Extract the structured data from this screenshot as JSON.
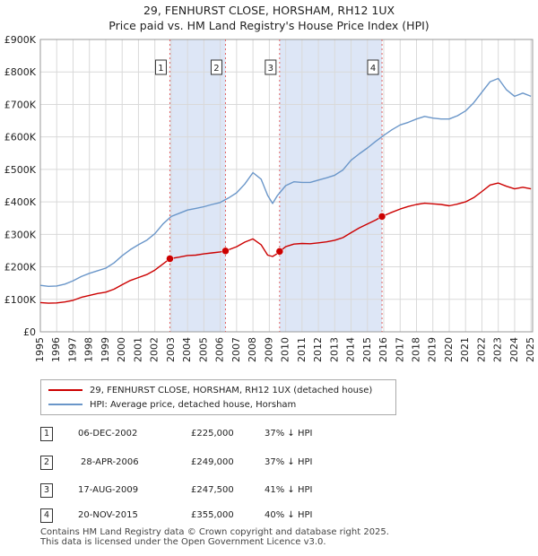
{
  "title_line1": "29, FENHURST CLOSE, HORSHAM, RH12 1UX",
  "title_line2": "Price paid vs. HM Land Registry's House Price Index (HPI)",
  "colors": {
    "property": "#cc0000",
    "hpi": "#6a96c9",
    "band": "#dde6f6",
    "vline": "#e06060"
  },
  "chart_data": {
    "type": "line",
    "title": "29, FENHURST CLOSE, HORSHAM, RH12 1UX — Price paid vs. HM Land Registry's House Price Index (HPI)",
    "xlabel": "",
    "ylabel": "",
    "xlim": [
      1995,
      2025.1
    ],
    "ylim": [
      0,
      900000
    ],
    "y_ticks": [
      0,
      100000,
      200000,
      300000,
      400000,
      500000,
      600000,
      700000,
      800000,
      900000
    ],
    "y_tick_labels": [
      "£0",
      "£100K",
      "£200K",
      "£300K",
      "£400K",
      "£500K",
      "£600K",
      "£700K",
      "£800K",
      "£900K"
    ],
    "x_ticks": [
      1995,
      1996,
      1997,
      1998,
      1999,
      2000,
      2001,
      2002,
      2003,
      2004,
      2005,
      2006,
      2007,
      2008,
      2009,
      2010,
      2011,
      2012,
      2013,
      2014,
      2015,
      2016,
      2017,
      2018,
      2019,
      2020,
      2021,
      2022,
      2023,
      2024,
      2025
    ],
    "grid": true,
    "series": [
      {
        "name": "29, FENHURST CLOSE, HORSHAM, RH12 1UX (detached house)",
        "color": "#cc0000",
        "x": [
          1995.0,
          1995.5,
          1996.0,
          1996.5,
          1997.0,
          1997.5,
          1998.0,
          1998.5,
          1999.0,
          1999.5,
          2000.0,
          2000.5,
          2001.0,
          2001.5,
          2002.0,
          2002.5,
          2002.92,
          2003.5,
          2004.0,
          2004.5,
          2005.0,
          2005.5,
          2006.0,
          2006.32,
          2007.0,
          2007.5,
          2008.0,
          2008.5,
          2008.9,
          2009.2,
          2009.4,
          2009.63,
          2010.0,
          2010.5,
          2011.0,
          2011.5,
          2012.0,
          2012.5,
          2013.0,
          2013.5,
          2014.0,
          2014.5,
          2015.0,
          2015.5,
          2015.89,
          2016.5,
          2017.0,
          2017.5,
          2018.0,
          2018.5,
          2019.0,
          2019.5,
          2020.0,
          2020.5,
          2021.0,
          2021.5,
          2022.0,
          2022.5,
          2023.0,
          2023.5,
          2024.0,
          2024.5,
          2025.0
        ],
        "values": [
          90000,
          88000,
          89000,
          92000,
          97000,
          106000,
          112000,
          118000,
          122000,
          131000,
          145000,
          158000,
          167000,
          176000,
          190000,
          209000,
          225000,
          230000,
          235000,
          236000,
          240000,
          243000,
          246000,
          249000,
          262000,
          276000,
          286000,
          268000,
          236000,
          232000,
          238000,
          247500,
          262000,
          270000,
          272000,
          271000,
          274000,
          277000,
          282000,
          290000,
          305000,
          320000,
          332000,
          344000,
          355000,
          368000,
          378000,
          386000,
          392000,
          396000,
          394000,
          392000,
          388000,
          393000,
          400000,
          413000,
          432000,
          452000,
          458000,
          448000,
          440000,
          445000,
          440000
        ]
      },
      {
        "name": "HPI: Average price, detached house, Horsham",
        "color": "#6a96c9",
        "x": [
          1995.0,
          1995.5,
          1996.0,
          1996.5,
          1997.0,
          1997.5,
          1998.0,
          1998.5,
          1999.0,
          1999.5,
          2000.0,
          2000.5,
          2001.0,
          2001.5,
          2002.0,
          2002.5,
          2003.0,
          2003.5,
          2004.0,
          2004.5,
          2005.0,
          2005.5,
          2006.0,
          2006.5,
          2007.0,
          2007.5,
          2008.0,
          2008.5,
          2008.9,
          2009.2,
          2009.5,
          2010.0,
          2010.5,
          2011.0,
          2011.5,
          2012.0,
          2012.5,
          2013.0,
          2013.5,
          2014.0,
          2014.5,
          2015.0,
          2015.5,
          2016.0,
          2016.5,
          2017.0,
          2017.5,
          2018.0,
          2018.5,
          2019.0,
          2019.5,
          2020.0,
          2020.5,
          2021.0,
          2021.5,
          2022.0,
          2022.5,
          2023.0,
          2023.5,
          2024.0,
          2024.5,
          2025.0
        ],
        "values": [
          143000,
          140000,
          141000,
          147000,
          157000,
          170000,
          180000,
          188000,
          196000,
          212000,
          234000,
          253000,
          268000,
          282000,
          302000,
          332000,
          355000,
          365000,
          375000,
          380000,
          385000,
          392000,
          398000,
          412000,
          428000,
          455000,
          490000,
          470000,
          420000,
          395000,
          420000,
          450000,
          462000,
          460000,
          460000,
          467000,
          474000,
          482000,
          498000,
          528000,
          548000,
          566000,
          586000,
          605000,
          622000,
          637000,
          645000,
          655000,
          663000,
          658000,
          655000,
          655000,
          665000,
          680000,
          705000,
          738000,
          770000,
          780000,
          745000,
          725000,
          735000,
          725000
        ]
      }
    ],
    "transactions": [
      {
        "label": "1",
        "x": 2002.92,
        "value": 225000
      },
      {
        "label": "2",
        "x": 2006.32,
        "value": 249000
      },
      {
        "label": "3",
        "x": 2009.63,
        "value": 247500
      },
      {
        "label": "4",
        "x": 2015.89,
        "value": 355000
      }
    ],
    "shaded_ranges": [
      [
        2002.92,
        2006.32
      ],
      [
        2009.63,
        2015.89
      ]
    ]
  },
  "legend": {
    "property": "29, FENHURST CLOSE, HORSHAM, RH12 1UX (detached house)",
    "hpi": "HPI: Average price, detached house, Horsham"
  },
  "table": [
    {
      "num": "1",
      "date": "06-DEC-2002",
      "price": "£225,000",
      "hpi": "37% ↓ HPI"
    },
    {
      "num": "2",
      "date": "28-APR-2006",
      "price": "£249,000",
      "hpi": "37% ↓ HPI"
    },
    {
      "num": "3",
      "date": "17-AUG-2009",
      "price": "£247,500",
      "hpi": "41% ↓ HPI"
    },
    {
      "num": "4",
      "date": "20-NOV-2015",
      "price": "£355,000",
      "hpi": "40% ↓ HPI"
    }
  ],
  "footer_line1": "Contains HM Land Registry data © Crown copyright and database right 2025.",
  "footer_line2": "This data is licensed under the Open Government Licence v3.0."
}
